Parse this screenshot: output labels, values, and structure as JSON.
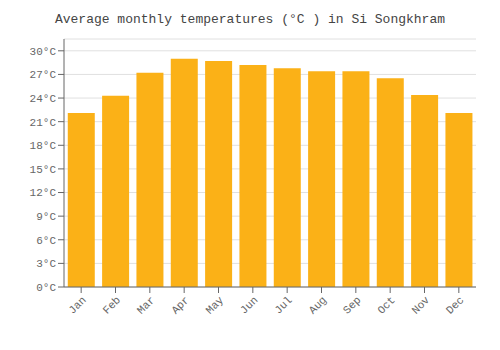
{
  "chart_data": {
    "type": "bar",
    "title": "Average monthly temperatures (°C ) in Si Songkhram",
    "categories": [
      "Jan",
      "Feb",
      "Mar",
      "Apr",
      "May",
      "Jun",
      "Jul",
      "Aug",
      "Sep",
      "Oct",
      "Nov",
      "Dec"
    ],
    "values": [
      22.1,
      24.3,
      27.2,
      29.0,
      28.7,
      28.2,
      27.8,
      27.4,
      27.4,
      26.5,
      24.4,
      22.1
    ],
    "color": "#FBB117",
    "ylim": [
      0,
      31.5
    ],
    "yticks": [
      {
        "value": 0,
        "label": "0°C"
      },
      {
        "value": 3,
        "label": "3°C"
      },
      {
        "value": 6,
        "label": "6°C"
      },
      {
        "value": 9,
        "label": "9°C"
      },
      {
        "value": 12,
        "label": "12°C"
      },
      {
        "value": 15,
        "label": "15°C"
      },
      {
        "value": 18,
        "label": "18°C"
      },
      {
        "value": 21,
        "label": "21°C"
      },
      {
        "value": 24,
        "label": "24°C"
      },
      {
        "value": 27,
        "label": "27°C"
      },
      {
        "value": 30,
        "label": "30°C"
      }
    ],
    "grid": true
  }
}
